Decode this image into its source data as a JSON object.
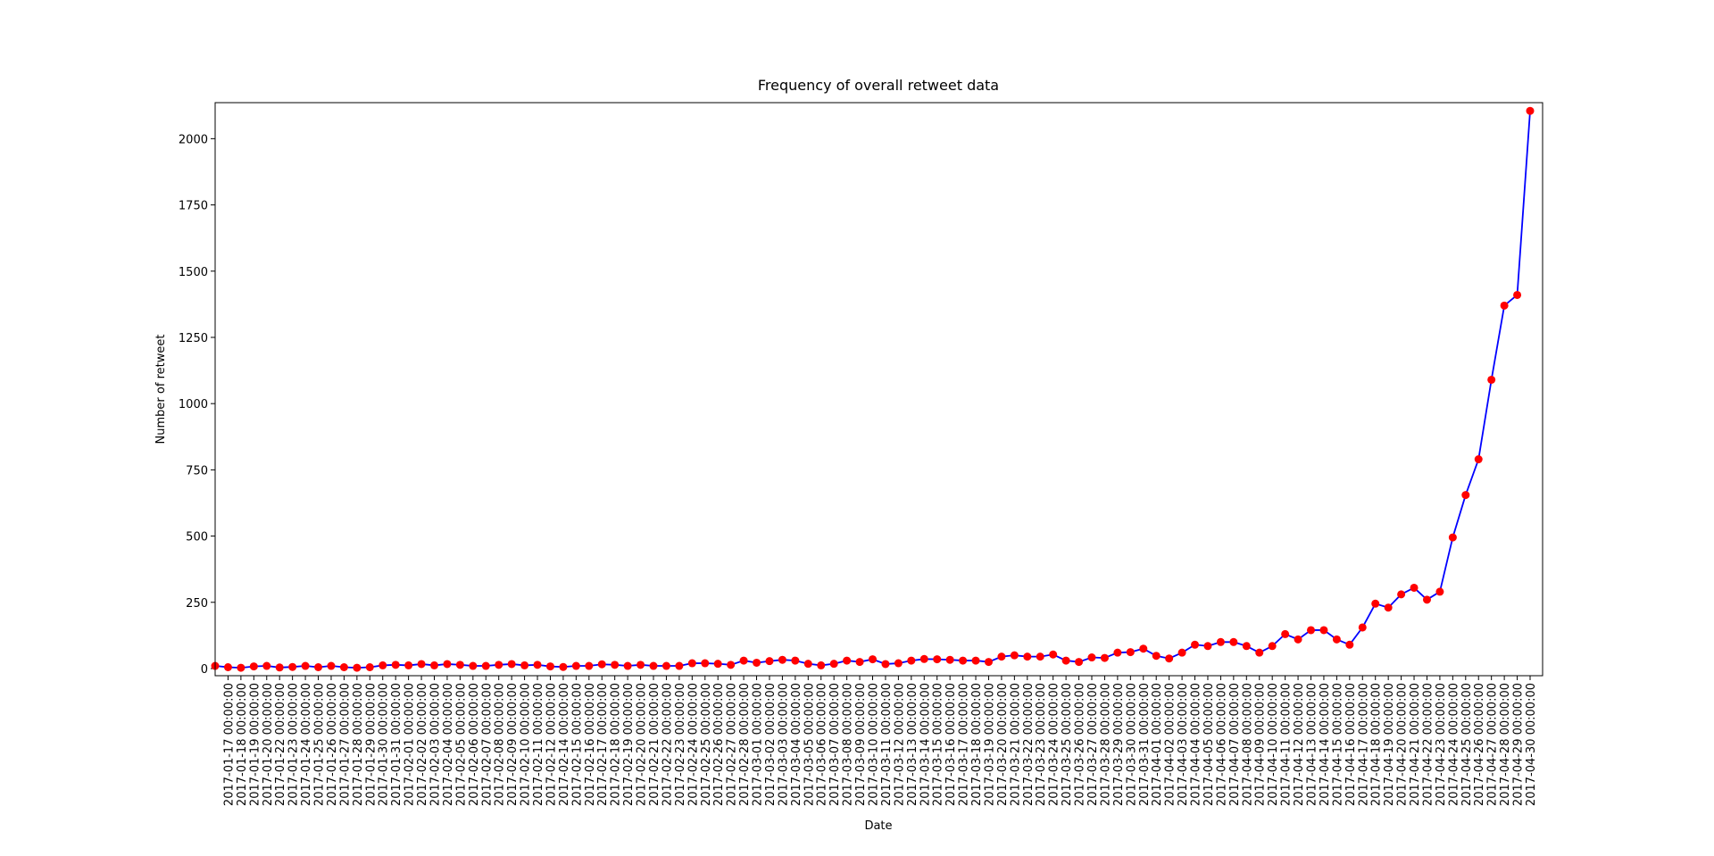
{
  "chart_data": {
    "type": "line",
    "title": "Frequency of overall retweet data",
    "x_label": "Date",
    "y_label": "Number of retweet",
    "categories": [
      null,
      "2017-01-17 00:00:00",
      "2017-01-18 00:00:00",
      "2017-01-19 00:00:00",
      "2017-01-20 00:00:00",
      "2017-01-22 00:00:00",
      "2017-01-23 00:00:00",
      "2017-01-24 00:00:00",
      "2017-01-25 00:00:00",
      "2017-01-26 00:00:00",
      "2017-01-27 00:00:00",
      "2017-01-28 00:00:00",
      "2017-01-29 00:00:00",
      "2017-01-30 00:00:00",
      "2017-01-31 00:00:00",
      "2017-02-01 00:00:00",
      "2017-02-02 00:00:00",
      "2017-02-03 00:00:00",
      "2017-02-04 00:00:00",
      "2017-02-05 00:00:00",
      "2017-02-06 00:00:00",
      "2017-02-07 00:00:00",
      "2017-02-08 00:00:00",
      "2017-02-09 00:00:00",
      "2017-02-10 00:00:00",
      "2017-02-11 00:00:00",
      "2017-02-12 00:00:00",
      "2017-02-14 00:00:00",
      "2017-02-15 00:00:00",
      "2017-02-16 00:00:00",
      "2017-02-17 00:00:00",
      "2017-02-18 00:00:00",
      "2017-02-19 00:00:00",
      "2017-02-20 00:00:00",
      "2017-02-21 00:00:00",
      "2017-02-22 00:00:00",
      "2017-02-23 00:00:00",
      "2017-02-24 00:00:00",
      "2017-02-25 00:00:00",
      "2017-02-26 00:00:00",
      "2017-02-27 00:00:00",
      "2017-02-28 00:00:00",
      "2017-03-01 00:00:00",
      "2017-03-02 00:00:00",
      "2017-03-03 00:00:00",
      "2017-03-04 00:00:00",
      "2017-03-05 00:00:00",
      "2017-03-06 00:00:00",
      "2017-03-07 00:00:00",
      "2017-03-08 00:00:00",
      "2017-03-09 00:00:00",
      "2017-03-10 00:00:00",
      "2017-03-11 00:00:00",
      "2017-03-12 00:00:00",
      "2017-03-13 00:00:00",
      "2017-03-14 00:00:00",
      "2017-03-15 00:00:00",
      "2017-03-16 00:00:00",
      "2017-03-17 00:00:00",
      "2017-03-18 00:00:00",
      "2017-03-19 00:00:00",
      "2017-03-20 00:00:00",
      "2017-03-21 00:00:00",
      "2017-03-22 00:00:00",
      "2017-03-23 00:00:00",
      "2017-03-24 00:00:00",
      "2017-03-25 00:00:00",
      "2017-03-26 00:00:00",
      "2017-03-27 00:00:00",
      "2017-03-28 00:00:00",
      "2017-03-29 00:00:00",
      "2017-03-30 00:00:00",
      "2017-03-31 00:00:00",
      "2017-04-01 00:00:00",
      "2017-04-02 00:00:00",
      "2017-04-03 00:00:00",
      "2017-04-04 00:00:00",
      "2017-04-05 00:00:00",
      "2017-04-06 00:00:00",
      "2017-04-07 00:00:00",
      "2017-04-08 00:00:00",
      "2017-04-09 00:00:00",
      "2017-04-10 00:00:00",
      "2017-04-11 00:00:00",
      "2017-04-12 00:00:00",
      "2017-04-13 00:00:00",
      "2017-04-14 00:00:00",
      "2017-04-15 00:00:00",
      "2017-04-16 00:00:00",
      "2017-04-17 00:00:00",
      "2017-04-18 00:00:00",
      "2017-04-19 00:00:00",
      "2017-04-20 00:00:00",
      "2017-04-21 00:00:00",
      "2017-04-22 00:00:00",
      "2017-04-23 00:00:00",
      "2017-04-24 00:00:00",
      "2017-04-25 00:00:00",
      "2017-04-26 00:00:00",
      "2017-04-27 00:00:00",
      "2017-04-28 00:00:00",
      "2017-04-29 00:00:00",
      "2017-04-30 00:00:00"
    ],
    "series": [
      {
        "color": "#0000ff",
        "marker_color": "#ff0000",
        "values": [
          10,
          5,
          3,
          8,
          10,
          4,
          6,
          10,
          5,
          10,
          5,
          3,
          5,
          12,
          14,
          12,
          17,
          12,
          17,
          14,
          10,
          10,
          14,
          17,
          12,
          14,
          8,
          6,
          10,
          10,
          16,
          14,
          10,
          14,
          10,
          10,
          10,
          20,
          20,
          18,
          14,
          30,
          22,
          28,
          33,
          30,
          18,
          12,
          18,
          30,
          25,
          35,
          17,
          20,
          30,
          36,
          35,
          33,
          30,
          30,
          25,
          45,
          50,
          45,
          45,
          53,
          30,
          25,
          42,
          40,
          60,
          62,
          75,
          48,
          38,
          60,
          90,
          85,
          100,
          100,
          85,
          60,
          85,
          130,
          110,
          145,
          145,
          110,
          90,
          155,
          245,
          230,
          280,
          305,
          260,
          290,
          495,
          655,
          790,
          1090,
          1370,
          1410,
          2105
        ]
      }
    ],
    "ylim": [
      -27,
      2136
    ],
    "yticks": [
      0,
      250,
      500,
      750,
      1000,
      1250,
      1500,
      1750,
      2000
    ]
  }
}
